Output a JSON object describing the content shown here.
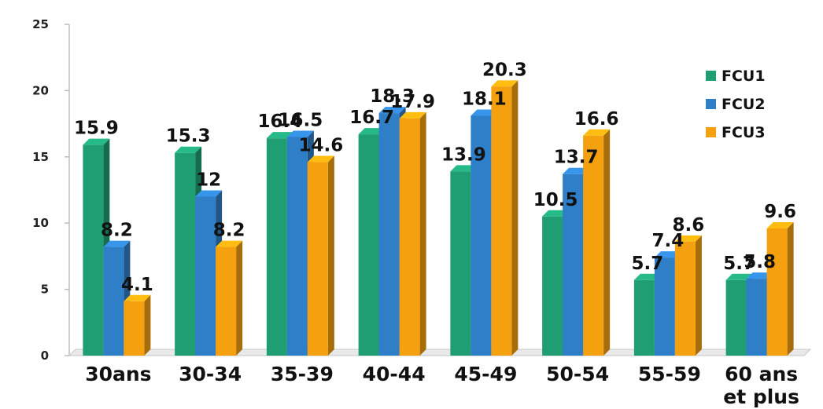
{
  "chart_data": {
    "type": "bar",
    "title": "",
    "xlabel": "",
    "ylabel": "",
    "ylim": [
      0,
      25
    ],
    "yticks": [
      0,
      5,
      10,
      15,
      20,
      25
    ],
    "grid": false,
    "legend_position": "top-right",
    "categories": [
      "30ans",
      "30-34",
      "35-39",
      "40-44",
      "45-49",
      "50-54",
      "55-59",
      "60 ans et plus"
    ],
    "series": [
      {
        "name": "FCU1",
        "color": "#1f9e73",
        "values": [
          15.9,
          15.3,
          16.4,
          16.7,
          13.9,
          10.5,
          5.7,
          5.7
        ]
      },
      {
        "name": "FCU2",
        "color": "#2f7fc8",
        "values": [
          8.2,
          12,
          16.5,
          18.3,
          18.1,
          13.7,
          7.4,
          5.8
        ]
      },
      {
        "name": "FCU3",
        "color": "#f4a00f",
        "values": [
          4.1,
          8.2,
          14.6,
          17.9,
          20.3,
          16.6,
          8.6,
          9.6
        ]
      }
    ]
  }
}
